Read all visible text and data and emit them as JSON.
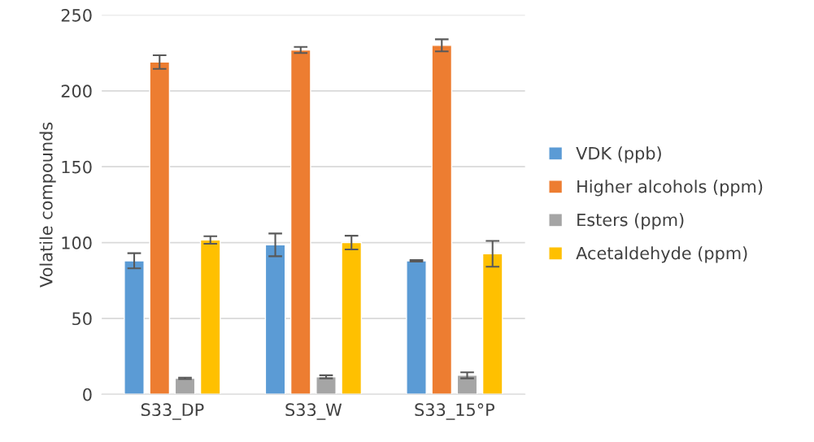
{
  "chart_data": {
    "type": "bar",
    "ylabel": "Volatile compounds",
    "categories": [
      "S33_DP",
      "S33_W",
      "S33_15°P"
    ],
    "series": [
      {
        "name": "VDK (ppb)",
        "color": "#5b9bd5",
        "values": [
          88,
          98.5,
          88
        ],
        "errors": [
          5,
          7.5,
          0.5
        ]
      },
      {
        "name": "Higher alcohols (ppm)",
        "color": "#ed7d31",
        "values": [
          219,
          227,
          230
        ],
        "errors": [
          4.5,
          2,
          4
        ]
      },
      {
        "name": "Esters (ppm)",
        "color": "#a5a5a5",
        "values": [
          10.5,
          11.5,
          12.5
        ],
        "errors": [
          0.5,
          1,
          2
        ]
      },
      {
        "name": "Acetaldehyde (ppm)",
        "color": "#ffc000",
        "values": [
          101.7,
          100,
          92.6
        ],
        "errors": [
          2.5,
          4.5,
          8.5
        ]
      }
    ],
    "ylim": [
      0,
      250
    ],
    "yticks": [
      0,
      50,
      100,
      150,
      200,
      250
    ],
    "grid": "y",
    "legend": "right"
  }
}
